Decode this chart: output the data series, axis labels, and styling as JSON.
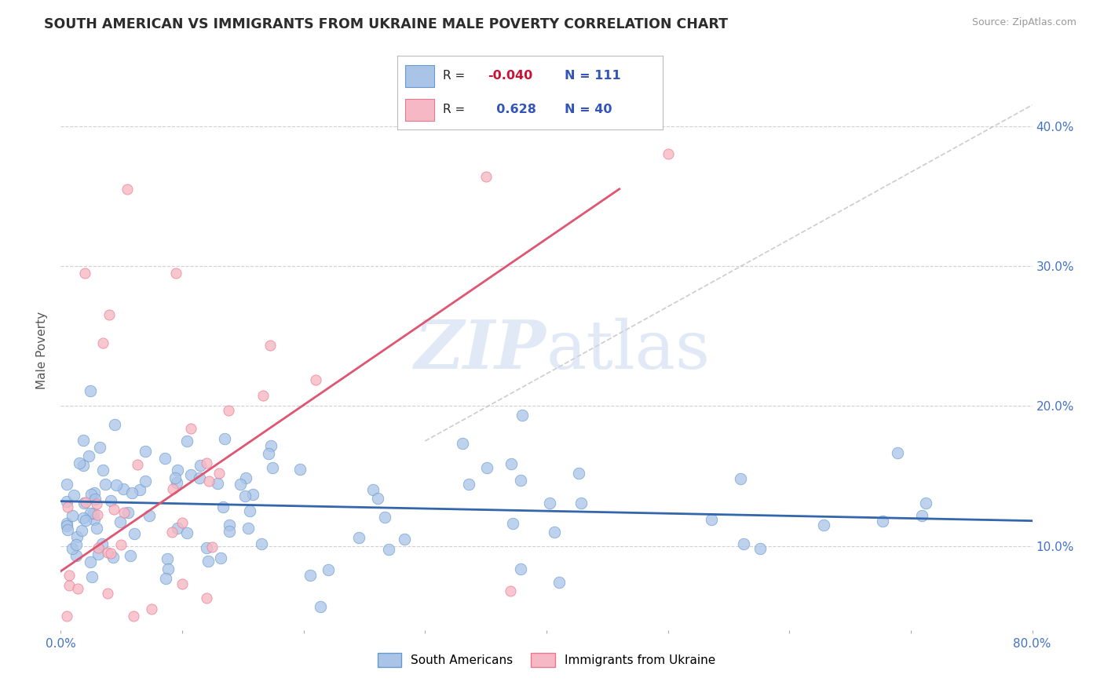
{
  "title": "SOUTH AMERICAN VS IMMIGRANTS FROM UKRAINE MALE POVERTY CORRELATION CHART",
  "source": "Source: ZipAtlas.com",
  "ylabel": "Male Poverty",
  "xlim": [
    0.0,
    0.8
  ],
  "ylim": [
    0.04,
    0.44
  ],
  "yticks_right": [
    0.1,
    0.2,
    0.3,
    0.4
  ],
  "ytick_labels_right": [
    "10.0%",
    "20.0%",
    "30.0%",
    "40.0%"
  ],
  "xtick_show_labels": [
    "0.0%",
    "",
    "",
    "",
    "",
    "",
    "",
    "",
    "80.0%"
  ],
  "xtick_vals": [
    0.0,
    0.1,
    0.2,
    0.3,
    0.4,
    0.5,
    0.6,
    0.7,
    0.8
  ],
  "background_color": "#ffffff",
  "plot_bg_color": "#ffffff",
  "grid_color": "#cccccc",
  "title_color": "#2c2c2c",
  "watermark_text": "ZIPatlas",
  "series1_color": "#aac4e8",
  "series1_edge": "#6699cc",
  "series2_color": "#f5b8c4",
  "series2_edge": "#e87890",
  "trendline1_color": "#3366aa",
  "trendline2_color": "#e05570",
  "ref_line_color": "#c0c0c0",
  "legend_r1": "-0.040",
  "legend_n1": "111",
  "legend_r2": "0.628",
  "legend_n2": "40",
  "series1_label": "South Americans",
  "series2_label": "Immigrants from Ukraine",
  "trendline1_x": [
    0.0,
    0.8
  ],
  "trendline1_y": [
    0.132,
    0.118
  ],
  "trendline2_x": [
    0.0,
    0.46
  ],
  "trendline2_y": [
    0.082,
    0.355
  ],
  "ref_line_x": [
    0.3,
    0.8
  ],
  "ref_line_y": [
    0.175,
    0.415
  ]
}
